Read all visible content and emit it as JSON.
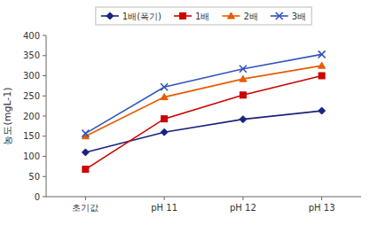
{
  "chart_data": {
    "type": "line",
    "categories": [
      "초기값",
      "pH 11",
      "pH 12",
      "pH 13"
    ],
    "series": [
      {
        "name": "1배(폭기)",
        "color": "#1a237e",
        "marker": "diamond",
        "line_style": "solid",
        "values": [
          110,
          160,
          192,
          213
        ]
      },
      {
        "name": "1배",
        "color": "#cc0000",
        "marker": "square",
        "line_style": "solid",
        "values": [
          68,
          193,
          252,
          300
        ]
      },
      {
        "name": "2배",
        "color": "#e65c00",
        "marker": "triangle",
        "line_style": "solid",
        "values": [
          150,
          247,
          292,
          325
        ]
      },
      {
        "name": "3배",
        "color": "#3355bb",
        "marker": "x",
        "line_style": "solid",
        "values": [
          157,
          272,
          317,
          353
        ]
      }
    ],
    "y_label": "농도(mgL-1)",
    "ylim": [
      0,
      400
    ],
    "yticks": [
      0,
      50,
      100,
      150,
      200,
      250,
      300,
      350,
      400
    ],
    "grid": false,
    "legend": "top"
  }
}
